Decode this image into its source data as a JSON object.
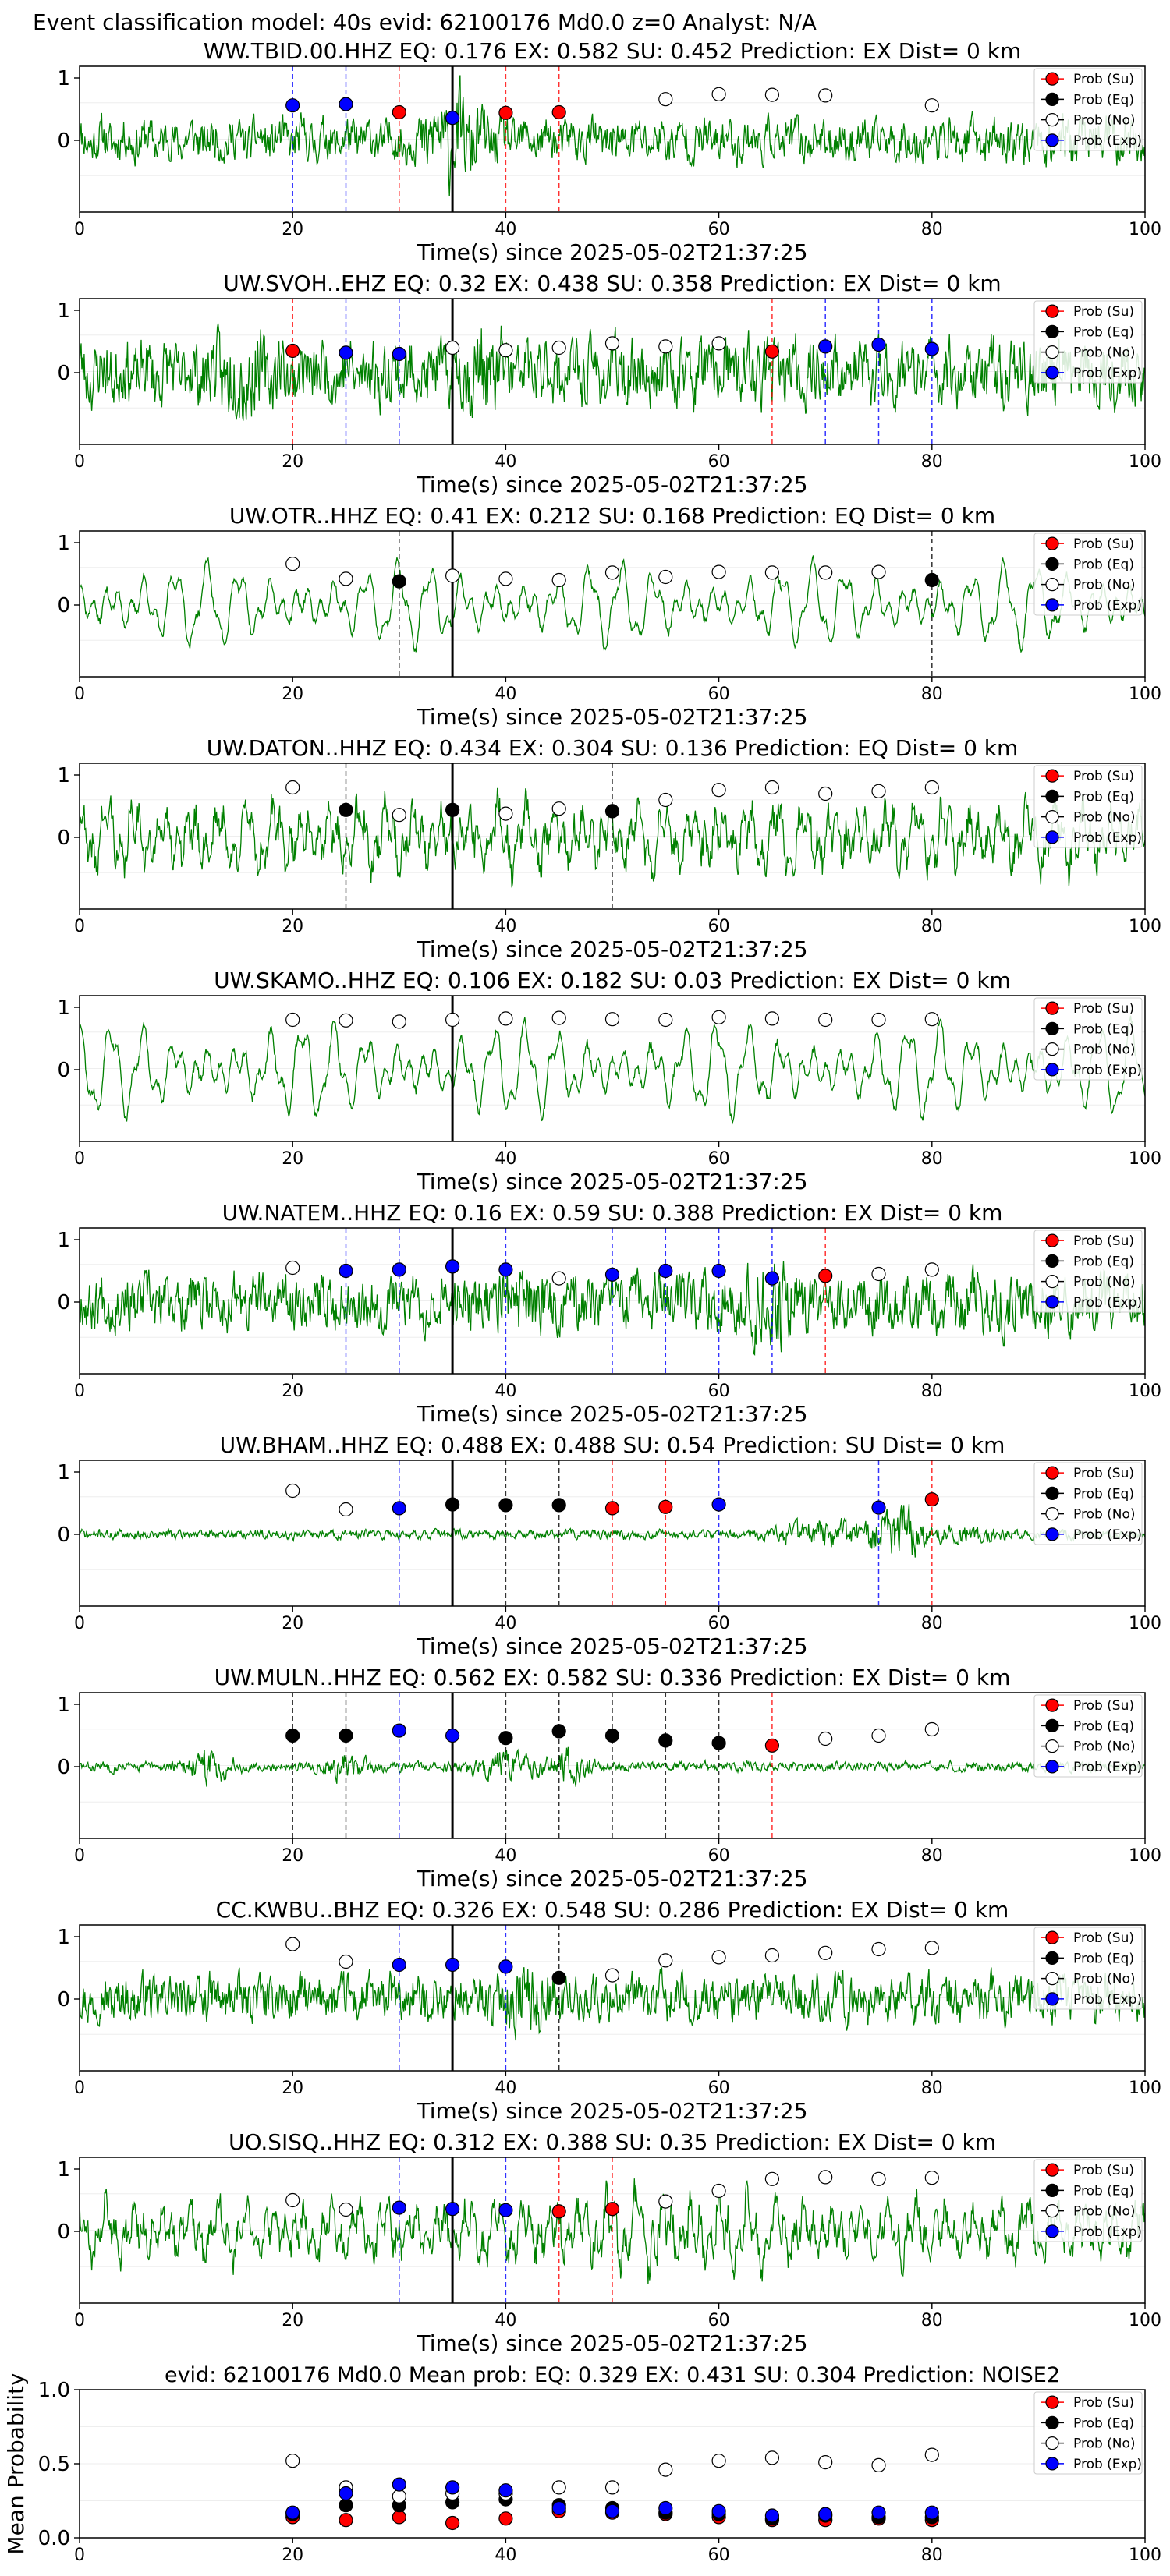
{
  "figure": {
    "suptitle": "Event classification model: 40s evid: 62100176 Md0.0 z=0 Analyst: N/A"
  },
  "legend_labels": [
    "Prob (Su)",
    "Prob (Eq)",
    "Prob (No)",
    "Prob (Exp)"
  ],
  "colors": {
    "su": "#ff0000",
    "eq": "#000000",
    "no": "#ffffff",
    "exp": "#0000ff",
    "waveform": "#008000",
    "su_line": "#ff0000",
    "eq_line": "#000000",
    "exp_line": "#0000ff"
  },
  "chart_data": [
    {
      "type": "line",
      "title": "WW.TBID.00.HHZ   EQ: 0.176  EX: 0.582  SU: 0.452   Prediction: EX    Dist= 0 km",
      "xlabel": "Time(s) since 2025-05-02T21:37:25",
      "xlim": [
        0,
        100
      ],
      "x_ticks": [
        "0",
        "20",
        "40",
        "60",
        "80",
        "100"
      ],
      "y_ticks": [
        "1",
        "0"
      ],
      "waveform": {
        "seed": 11,
        "style": "noise",
        "amp": 0.55,
        "dc": 0.0,
        "bursts": [
          {
            "t": 35,
            "w": 3,
            "a": 2.2
          },
          {
            "t": 93,
            "w": 5,
            "a": 1.2
          }
        ]
      },
      "marker_line": 35,
      "points": [
        {
          "t": 20,
          "p": 0.56,
          "c": "exp"
        },
        {
          "t": 25,
          "p": 0.58,
          "c": "exp"
        },
        {
          "t": 30,
          "p": 0.45,
          "c": "su"
        },
        {
          "t": 35,
          "p": 0.36,
          "c": "exp"
        },
        {
          "t": 40,
          "p": 0.44,
          "c": "su"
        },
        {
          "t": 45,
          "p": 0.45,
          "c": "su"
        },
        {
          "t": 55,
          "p": 0.66,
          "c": "no"
        },
        {
          "t": 60,
          "p": 0.74,
          "c": "no"
        },
        {
          "t": 65,
          "p": 0.73,
          "c": "no"
        },
        {
          "t": 70,
          "p": 0.72,
          "c": "no"
        },
        {
          "t": 80,
          "p": 0.56,
          "c": "no"
        }
      ]
    },
    {
      "type": "line",
      "title": "UW.SVOH..EHZ   EQ: 0.32  EX: 0.438  SU: 0.358   Prediction: EX    Dist= 0 km",
      "xlabel": "Time(s) since 2025-05-02T21:37:25",
      "xlim": [
        0,
        100
      ],
      "x_ticks": [
        "0",
        "20",
        "40",
        "60",
        "80",
        "100"
      ],
      "y_ticks": [
        "1",
        "0"
      ],
      "waveform": {
        "seed": 23,
        "style": "noise",
        "amp": 0.85,
        "dc": 0.0,
        "bursts": [
          {
            "t": 15,
            "w": 2,
            "a": 1.6
          },
          {
            "t": 38,
            "w": 2,
            "a": 1.5
          }
        ]
      },
      "marker_line": 35,
      "points": [
        {
          "t": 20,
          "p": 0.35,
          "c": "su"
        },
        {
          "t": 25,
          "p": 0.32,
          "c": "exp"
        },
        {
          "t": 30,
          "p": 0.3,
          "c": "exp"
        },
        {
          "t": 35,
          "p": 0.4,
          "c": "no"
        },
        {
          "t": 40,
          "p": 0.36,
          "c": "no"
        },
        {
          "t": 45,
          "p": 0.4,
          "c": "no"
        },
        {
          "t": 50,
          "p": 0.47,
          "c": "no"
        },
        {
          "t": 55,
          "p": 0.42,
          "c": "no"
        },
        {
          "t": 60,
          "p": 0.47,
          "c": "no"
        },
        {
          "t": 65,
          "p": 0.34,
          "c": "su"
        },
        {
          "t": 70,
          "p": 0.42,
          "c": "exp"
        },
        {
          "t": 75,
          "p": 0.45,
          "c": "exp"
        },
        {
          "t": 80,
          "p": 0.38,
          "c": "exp"
        }
      ]
    },
    {
      "type": "line",
      "title": "UW.OTR..HHZ   EQ: 0.41  EX: 0.212  SU: 0.168   Prediction: EQ    Dist= 0 km",
      "xlabel": "Time(s) since 2025-05-02T21:37:25",
      "xlim": [
        0,
        100
      ],
      "x_ticks": [
        "0",
        "20",
        "40",
        "60",
        "80",
        "100"
      ],
      "y_ticks": [
        "1",
        "0"
      ],
      "waveform": {
        "seed": 37,
        "style": "wave",
        "amp": 0.75,
        "dc": 0.0,
        "bursts": []
      },
      "marker_line": 35,
      "points": [
        {
          "t": 20,
          "p": 0.66,
          "c": "no"
        },
        {
          "t": 25,
          "p": 0.42,
          "c": "no"
        },
        {
          "t": 30,
          "p": 0.38,
          "c": "eq"
        },
        {
          "t": 35,
          "p": 0.47,
          "c": "no"
        },
        {
          "t": 40,
          "p": 0.42,
          "c": "no"
        },
        {
          "t": 45,
          "p": 0.4,
          "c": "no"
        },
        {
          "t": 50,
          "p": 0.52,
          "c": "no"
        },
        {
          "t": 55,
          "p": 0.45,
          "c": "no"
        },
        {
          "t": 60,
          "p": 0.53,
          "c": "no"
        },
        {
          "t": 65,
          "p": 0.52,
          "c": "no"
        },
        {
          "t": 70,
          "p": 0.52,
          "c": "no"
        },
        {
          "t": 75,
          "p": 0.53,
          "c": "no"
        },
        {
          "t": 80,
          "p": 0.4,
          "c": "eq"
        }
      ]
    },
    {
      "type": "line",
      "title": "UW.DATON..HHZ   EQ: 0.434  EX: 0.304  SU: 0.136   Prediction: EQ    Dist= 0 km",
      "xlabel": "Time(s) since 2025-05-02T21:37:25",
      "xlim": [
        0,
        100
      ],
      "x_ticks": [
        "0",
        "20",
        "40",
        "60",
        "80",
        "100"
      ],
      "y_ticks": [
        "1",
        "0"
      ],
      "waveform": {
        "seed": 41,
        "style": "mixed",
        "amp": 0.8,
        "dc": 0.0,
        "bursts": []
      },
      "marker_line": 35,
      "points": [
        {
          "t": 20,
          "p": 0.8,
          "c": "no"
        },
        {
          "t": 25,
          "p": 0.44,
          "c": "eq"
        },
        {
          "t": 30,
          "p": 0.36,
          "c": "no"
        },
        {
          "t": 35,
          "p": 0.44,
          "c": "eq"
        },
        {
          "t": 40,
          "p": 0.38,
          "c": "no"
        },
        {
          "t": 45,
          "p": 0.46,
          "c": "no"
        },
        {
          "t": 50,
          "p": 0.42,
          "c": "eq"
        },
        {
          "t": 55,
          "p": 0.6,
          "c": "no"
        },
        {
          "t": 60,
          "p": 0.76,
          "c": "no"
        },
        {
          "t": 65,
          "p": 0.8,
          "c": "no"
        },
        {
          "t": 70,
          "p": 0.7,
          "c": "no"
        },
        {
          "t": 75,
          "p": 0.74,
          "c": "no"
        },
        {
          "t": 80,
          "p": 0.8,
          "c": "no"
        }
      ]
    },
    {
      "type": "line",
      "title": "UW.SKAMO..HHZ   EQ: 0.106  EX: 0.182  SU: 0.03   Prediction: EX    Dist= 0 km",
      "xlabel": "Time(s) since 2025-05-02T21:37:25",
      "xlim": [
        0,
        100
      ],
      "x_ticks": [
        "0",
        "20",
        "40",
        "60",
        "80",
        "100"
      ],
      "y_ticks": [
        "1",
        "0"
      ],
      "waveform": {
        "seed": 53,
        "style": "wave",
        "amp": 0.85,
        "dc": 0.0,
        "bursts": []
      },
      "marker_line": 35,
      "points": [
        {
          "t": 20,
          "p": 0.8,
          "c": "no"
        },
        {
          "t": 25,
          "p": 0.79,
          "c": "no"
        },
        {
          "t": 30,
          "p": 0.77,
          "c": "no"
        },
        {
          "t": 35,
          "p": 0.8,
          "c": "no"
        },
        {
          "t": 40,
          "p": 0.82,
          "c": "no"
        },
        {
          "t": 45,
          "p": 0.83,
          "c": "no"
        },
        {
          "t": 50,
          "p": 0.81,
          "c": "no"
        },
        {
          "t": 55,
          "p": 0.8,
          "c": "no"
        },
        {
          "t": 60,
          "p": 0.84,
          "c": "no"
        },
        {
          "t": 65,
          "p": 0.82,
          "c": "no"
        },
        {
          "t": 70,
          "p": 0.8,
          "c": "no"
        },
        {
          "t": 75,
          "p": 0.8,
          "c": "no"
        },
        {
          "t": 80,
          "p": 0.81,
          "c": "no"
        }
      ]
    },
    {
      "type": "line",
      "title": "UW.NATEM..HHZ   EQ: 0.16  EX: 0.59  SU: 0.388   Prediction: EX    Dist= 0 km",
      "xlabel": "Time(s) since 2025-05-02T21:37:25",
      "xlim": [
        0,
        100
      ],
      "x_ticks": [
        "0",
        "20",
        "40",
        "60",
        "80",
        "100"
      ],
      "y_ticks": [
        "1",
        "0"
      ],
      "waveform": {
        "seed": 67,
        "style": "noise",
        "amp": 0.7,
        "dc": 0.0,
        "bursts": [
          {
            "t": 41,
            "w": 2,
            "a": 1.4
          },
          {
            "t": 65,
            "w": 2,
            "a": 2.0
          },
          {
            "t": 86,
            "w": 3,
            "a": 1.2
          }
        ]
      },
      "marker_line": 35,
      "points": [
        {
          "t": 20,
          "p": 0.55,
          "c": "no"
        },
        {
          "t": 25,
          "p": 0.5,
          "c": "exp"
        },
        {
          "t": 30,
          "p": 0.52,
          "c": "exp"
        },
        {
          "t": 35,
          "p": 0.57,
          "c": "exp"
        },
        {
          "t": 40,
          "p": 0.52,
          "c": "exp"
        },
        {
          "t": 45,
          "p": 0.38,
          "c": "no"
        },
        {
          "t": 50,
          "p": 0.44,
          "c": "exp"
        },
        {
          "t": 55,
          "p": 0.5,
          "c": "exp"
        },
        {
          "t": 60,
          "p": 0.5,
          "c": "exp"
        },
        {
          "t": 65,
          "p": 0.38,
          "c": "exp"
        },
        {
          "t": 70,
          "p": 0.42,
          "c": "su"
        },
        {
          "t": 75,
          "p": 0.45,
          "c": "no"
        },
        {
          "t": 80,
          "p": 0.52,
          "c": "no"
        }
      ]
    },
    {
      "type": "line",
      "title": "UW.BHAM..HHZ   EQ: 0.488  EX: 0.488  SU: 0.54   Prediction: SU    Dist= 0 km",
      "xlabel": "Time(s) since 2025-05-02T21:37:25",
      "xlim": [
        0,
        100
      ],
      "x_ticks": [
        "0",
        "20",
        "40",
        "60",
        "80",
        "100"
      ],
      "y_ticks": [
        "1",
        "0"
      ],
      "waveform": {
        "seed": 71,
        "style": "noise",
        "amp": 0.12,
        "dc": 0.0,
        "bursts": [
          {
            "t": 70,
            "w": 4,
            "a": 3.5
          },
          {
            "t": 77,
            "w": 2.5,
            "a": 6.0
          },
          {
            "t": 84,
            "w": 3,
            "a": 2.0
          }
        ]
      },
      "marker_line": 35,
      "points": [
        {
          "t": 20,
          "p": 0.7,
          "c": "no"
        },
        {
          "t": 25,
          "p": 0.4,
          "c": "no"
        },
        {
          "t": 30,
          "p": 0.42,
          "c": "exp"
        },
        {
          "t": 35,
          "p": 0.48,
          "c": "eq"
        },
        {
          "t": 40,
          "p": 0.47,
          "c": "eq"
        },
        {
          "t": 45,
          "p": 0.47,
          "c": "eq"
        },
        {
          "t": 50,
          "p": 0.42,
          "c": "su"
        },
        {
          "t": 55,
          "p": 0.44,
          "c": "su"
        },
        {
          "t": 60,
          "p": 0.48,
          "c": "exp"
        },
        {
          "t": 75,
          "p": 0.43,
          "c": "exp"
        },
        {
          "t": 80,
          "p": 0.56,
          "c": "su"
        }
      ]
    },
    {
      "type": "line",
      "title": "UW.MULN..HHZ   EQ: 0.562  EX: 0.582  SU: 0.336   Prediction: EX    Dist= 0 km",
      "xlabel": "Time(s) since 2025-05-02T21:37:25",
      "xlim": [
        0,
        100
      ],
      "x_ticks": [
        "0",
        "20",
        "40",
        "60",
        "80",
        "100"
      ],
      "y_ticks": [
        "1",
        "0"
      ],
      "waveform": {
        "seed": 83,
        "style": "noise",
        "amp": 0.12,
        "dc": 0.0,
        "bursts": [
          {
            "t": 12,
            "w": 2,
            "a": 4.5
          },
          {
            "t": 25,
            "w": 2,
            "a": 3.0
          },
          {
            "t": 40,
            "w": 3,
            "a": 3.5
          },
          {
            "t": 46,
            "w": 2,
            "a": 4.0
          }
        ]
      },
      "marker_line": 35,
      "points": [
        {
          "t": 20,
          "p": 0.5,
          "c": "eq"
        },
        {
          "t": 25,
          "p": 0.5,
          "c": "eq"
        },
        {
          "t": 30,
          "p": 0.58,
          "c": "exp"
        },
        {
          "t": 35,
          "p": 0.5,
          "c": "exp"
        },
        {
          "t": 40,
          "p": 0.46,
          "c": "eq"
        },
        {
          "t": 45,
          "p": 0.57,
          "c": "eq"
        },
        {
          "t": 50,
          "p": 0.5,
          "c": "eq"
        },
        {
          "t": 55,
          "p": 0.42,
          "c": "eq"
        },
        {
          "t": 60,
          "p": 0.38,
          "c": "eq"
        },
        {
          "t": 65,
          "p": 0.34,
          "c": "su"
        },
        {
          "t": 70,
          "p": 0.45,
          "c": "no"
        },
        {
          "t": 75,
          "p": 0.5,
          "c": "no"
        },
        {
          "t": 80,
          "p": 0.6,
          "c": "no"
        }
      ]
    },
    {
      "type": "line",
      "title": "CC.KWBU..BHZ   EQ: 0.326  EX: 0.548  SU: 0.286   Prediction: EX    Dist= 0 km",
      "xlabel": "Time(s) since 2025-05-02T21:37:25",
      "xlim": [
        0,
        100
      ],
      "x_ticks": [
        "0",
        "20",
        "40",
        "60",
        "80",
        "100"
      ],
      "y_ticks": [
        "1",
        "0"
      ],
      "waveform": {
        "seed": 97,
        "style": "noise",
        "amp": 0.6,
        "dc": 0.0,
        "bursts": [
          {
            "t": 42,
            "w": 2,
            "a": 1.6
          }
        ]
      },
      "marker_line": 35,
      "points": [
        {
          "t": 20,
          "p": 0.88,
          "c": "no"
        },
        {
          "t": 25,
          "p": 0.6,
          "c": "no"
        },
        {
          "t": 30,
          "p": 0.55,
          "c": "exp"
        },
        {
          "t": 35,
          "p": 0.55,
          "c": "exp"
        },
        {
          "t": 40,
          "p": 0.52,
          "c": "exp"
        },
        {
          "t": 45,
          "p": 0.34,
          "c": "eq"
        },
        {
          "t": 50,
          "p": 0.38,
          "c": "no"
        },
        {
          "t": 55,
          "p": 0.62,
          "c": "no"
        },
        {
          "t": 60,
          "p": 0.67,
          "c": "no"
        },
        {
          "t": 65,
          "p": 0.7,
          "c": "no"
        },
        {
          "t": 70,
          "p": 0.74,
          "c": "no"
        },
        {
          "t": 75,
          "p": 0.8,
          "c": "no"
        },
        {
          "t": 80,
          "p": 0.82,
          "c": "no"
        }
      ]
    },
    {
      "type": "line",
      "title": "UO.SISQ..HHZ   EQ: 0.312  EX: 0.388  SU: 0.35   Prediction: EX    Dist= 0 km",
      "xlabel": "Time(s) since 2025-05-02T21:37:25",
      "xlim": [
        0,
        100
      ],
      "x_ticks": [
        "0",
        "20",
        "40",
        "60",
        "80",
        "100"
      ],
      "y_ticks": [
        "1",
        "0"
      ],
      "waveform": {
        "seed": 109,
        "style": "mixed",
        "amp": 0.7,
        "dc": 0.0,
        "bursts": [
          {
            "t": 55,
            "w": 10,
            "a": 1.4
          }
        ]
      },
      "marker_line": 35,
      "points": [
        {
          "t": 20,
          "p": 0.5,
          "c": "no"
        },
        {
          "t": 25,
          "p": 0.35,
          "c": "no"
        },
        {
          "t": 30,
          "p": 0.38,
          "c": "exp"
        },
        {
          "t": 35,
          "p": 0.36,
          "c": "exp"
        },
        {
          "t": 40,
          "p": 0.34,
          "c": "exp"
        },
        {
          "t": 45,
          "p": 0.32,
          "c": "su"
        },
        {
          "t": 50,
          "p": 0.36,
          "c": "su"
        },
        {
          "t": 55,
          "p": 0.48,
          "c": "no"
        },
        {
          "t": 60,
          "p": 0.65,
          "c": "no"
        },
        {
          "t": 65,
          "p": 0.84,
          "c": "no"
        },
        {
          "t": 70,
          "p": 0.87,
          "c": "no"
        },
        {
          "t": 75,
          "p": 0.84,
          "c": "no"
        },
        {
          "t": 80,
          "p": 0.86,
          "c": "no"
        }
      ]
    },
    {
      "type": "scatter",
      "title": "evid: 62100176   Md0.0    Mean prob:    EQ: 0.329   EX: 0.431   SU: 0.304    Prediction: NOISE2",
      "ylabel": "Mean Probability",
      "xlim": [
        0,
        100
      ],
      "ylim": [
        0,
        1
      ],
      "x_ticks": [
        "0",
        "20",
        "40",
        "60",
        "80",
        "100"
      ],
      "y_ticks": [
        "0.0",
        "0.5",
        "1.0"
      ],
      "categories_t": [
        20,
        25,
        30,
        35,
        40,
        45,
        50,
        55,
        60,
        65,
        70,
        75,
        80
      ],
      "series": [
        {
          "name": "Prob (Su)",
          "key": "su",
          "values": [
            0.14,
            0.12,
            0.14,
            0.1,
            0.13,
            0.18,
            0.17,
            0.16,
            0.14,
            0.12,
            0.12,
            0.13,
            0.12
          ]
        },
        {
          "name": "Prob (Eq)",
          "key": "eq",
          "values": [
            0.16,
            0.22,
            0.22,
            0.24,
            0.26,
            0.22,
            0.2,
            0.17,
            0.16,
            0.13,
            0.15,
            0.14,
            0.14
          ]
        },
        {
          "name": "Prob (No)",
          "key": "no",
          "values": [
            0.52,
            0.34,
            0.28,
            0.3,
            0.3,
            0.34,
            0.34,
            0.46,
            0.52,
            0.54,
            0.51,
            0.49,
            0.56
          ]
        },
        {
          "name": "Prob (Exp)",
          "key": "exp",
          "values": [
            0.17,
            0.3,
            0.36,
            0.34,
            0.32,
            0.2,
            0.18,
            0.2,
            0.18,
            0.15,
            0.16,
            0.17,
            0.17
          ]
        }
      ]
    }
  ]
}
